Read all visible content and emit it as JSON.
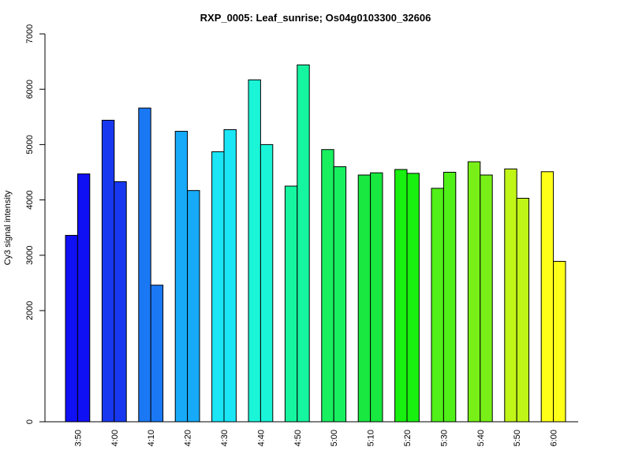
{
  "chart_data": {
    "type": "bar",
    "title": "RXP_0005: Leaf_sunrise; Os04g0103300_32606",
    "ylabel": "Cy3 signal intensity",
    "xlabel": "",
    "ylim": [
      0,
      7000
    ],
    "yticks": [
      0,
      2000,
      3000,
      4000,
      5000,
      6000,
      7000
    ],
    "y_scale": "compressed-low",
    "grid": false,
    "legend": "none",
    "categories": [
      "3:50",
      "4:00",
      "4:10",
      "4:20",
      "4:30",
      "4:40",
      "4:50",
      "5:00",
      "5:10",
      "5:20",
      "5:30",
      "5:40",
      "5:50",
      "6:00"
    ],
    "colors": [
      "#1010f5",
      "#1838f0",
      "#1a78f5",
      "#16aaf8",
      "#1ae6f5",
      "#1af5d8",
      "#16f5a0",
      "#18f060",
      "#18e840",
      "#18f010",
      "#50f018",
      "#78f018",
      "#c0f518",
      "#ffff18"
    ],
    "values": [
      [
        3360,
        4470
      ],
      [
        5440,
        4330
      ],
      [
        5660,
        2460
      ],
      [
        5240,
        4170
      ],
      [
        4870,
        5270
      ],
      [
        6170,
        5000
      ],
      [
        4250,
        6440
      ],
      [
        4910,
        4600
      ],
      [
        4450,
        4490
      ],
      [
        4550,
        4480
      ],
      [
        4210,
        4500
      ],
      [
        4690,
        4450
      ],
      [
        4560,
        4030
      ],
      [
        4510,
        2890
      ]
    ]
  }
}
